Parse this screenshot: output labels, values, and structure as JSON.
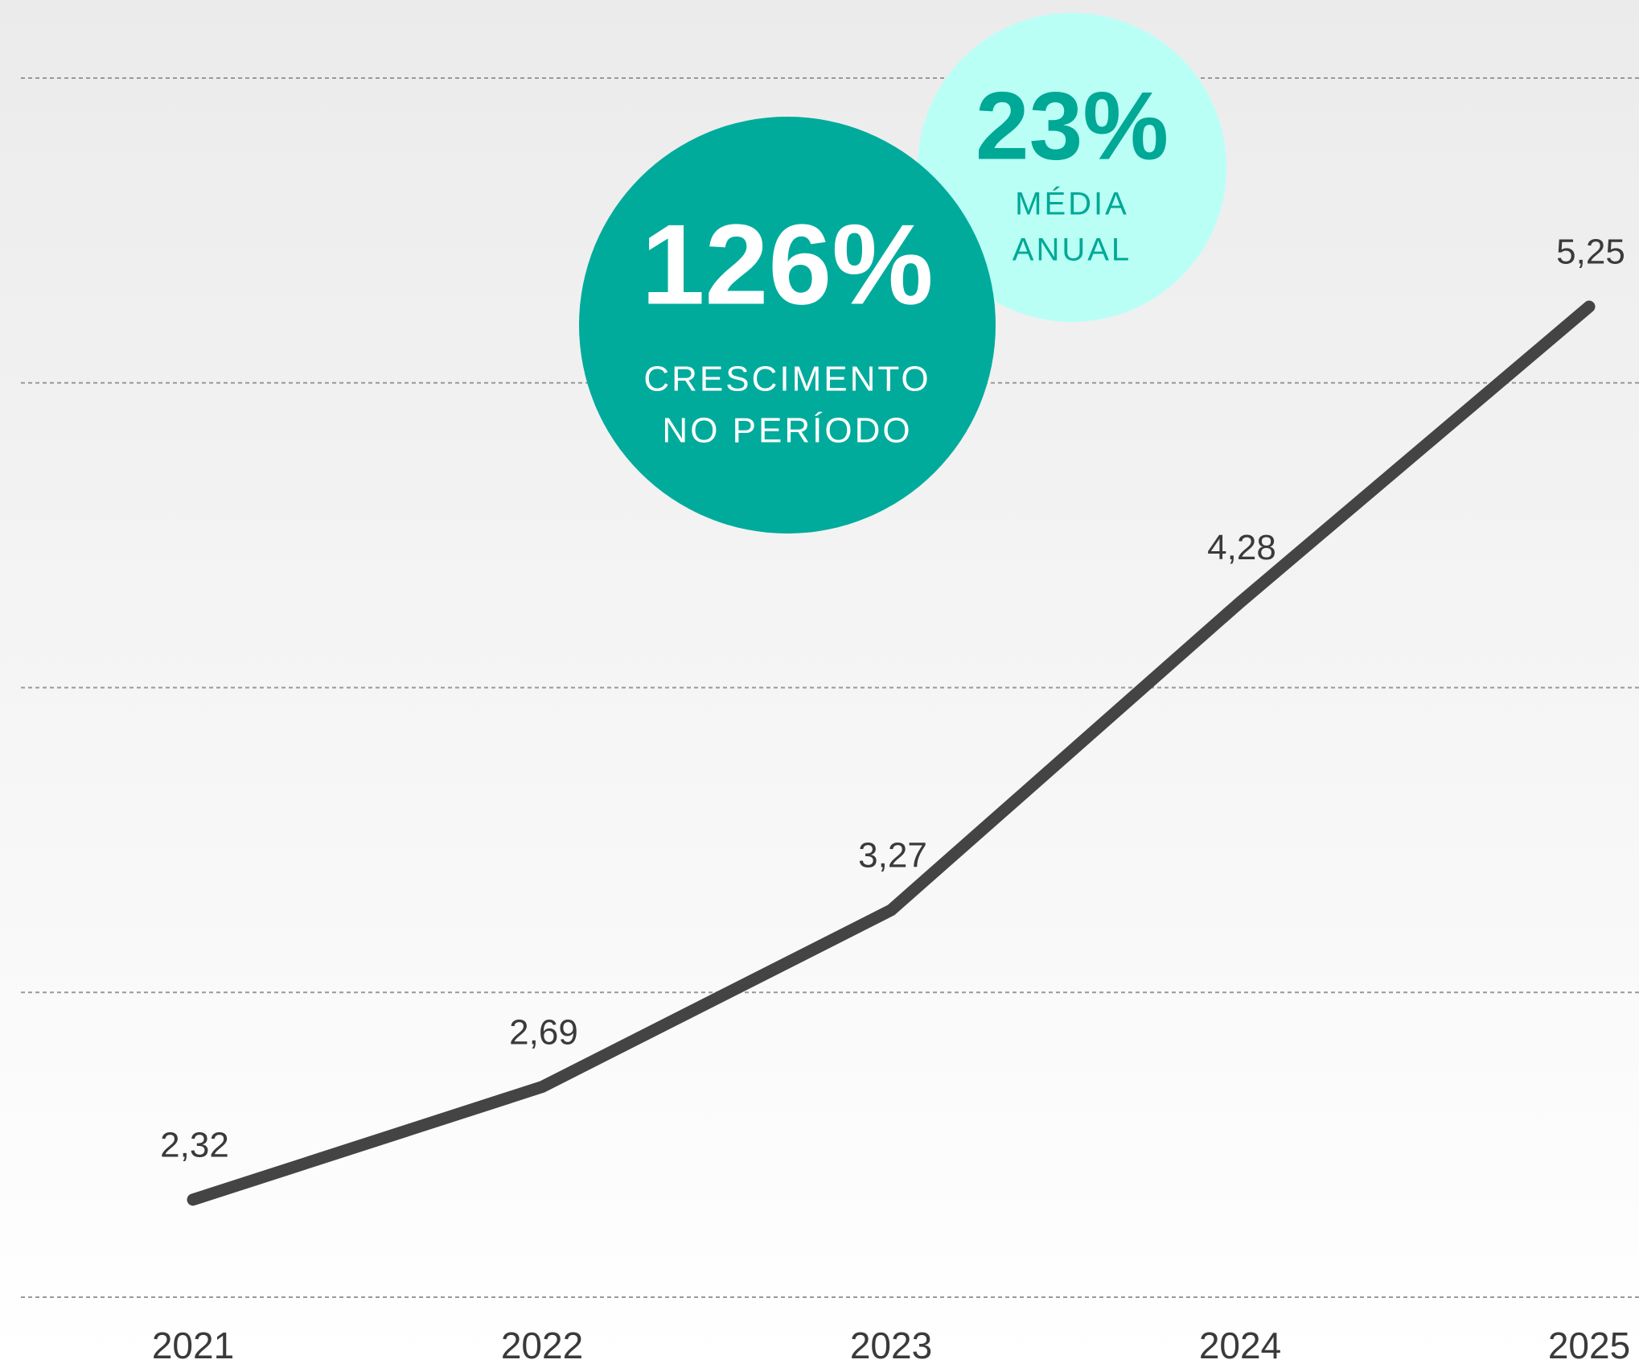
{
  "chart_data": {
    "type": "line",
    "categories": [
      "2021",
      "2022",
      "2023",
      "2024",
      "2025"
    ],
    "values": [
      2.32,
      2.69,
      3.27,
      4.28,
      5.25
    ],
    "value_labels": [
      "2,32",
      "2,69",
      "3,27",
      "4,28",
      "5,25"
    ],
    "color": "#444444",
    "ylim": [
      2,
      6
    ],
    "yticks": [
      2,
      3,
      4,
      5,
      6
    ],
    "grid": true,
    "annotations": [
      {
        "text": "23%",
        "lines": [
          "MÉDIA",
          "ANUAL"
        ],
        "color": "#bafff6",
        "text_color": "#00a896"
      },
      {
        "text": "126%",
        "lines": [
          "CRESCIMENTO",
          "NO PERÍODO"
        ],
        "color": "#00ab9c",
        "text_color": "#ffffff"
      }
    ]
  }
}
